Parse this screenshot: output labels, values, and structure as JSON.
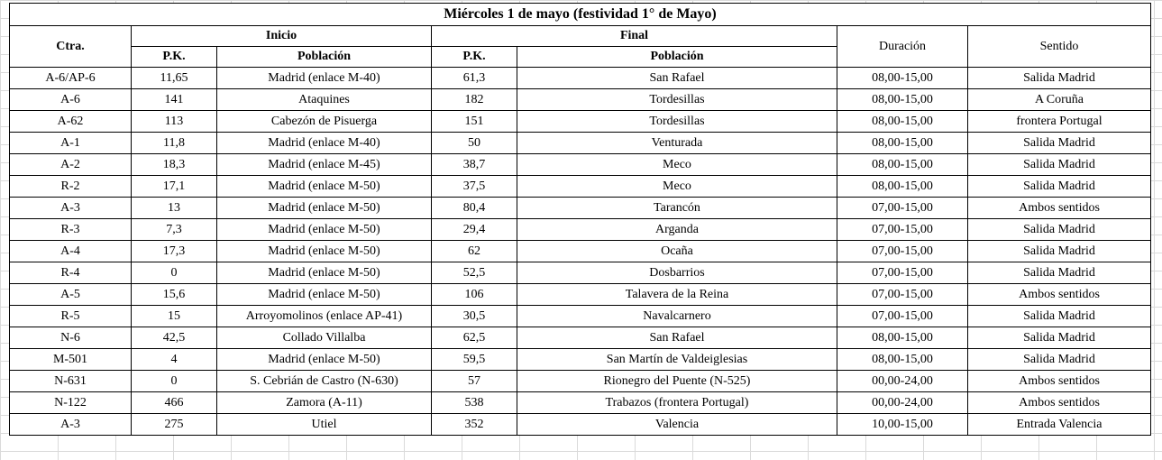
{
  "title": "Miércoles 1 de mayo  (festividad 1° de Mayo)",
  "headers": {
    "ctra": "Ctra.",
    "inicio": "Inicio",
    "final": "Final",
    "duracion": "Duración",
    "sentido": "Sentido",
    "pk_inicio": "P.K.",
    "poblacion_inicio": "Población",
    "pk_final": "P.K.",
    "poblacion_final": "Población"
  },
  "rows": [
    {
      "ctra": "A-6/AP-6",
      "pk_inicio": "11,65",
      "poblacion_inicio": "Madrid (enlace M-40)",
      "pk_final": "61,3",
      "poblacion_final": "San Rafael",
      "duracion": "08,00-15,00",
      "sentido": "Salida Madrid"
    },
    {
      "ctra": "A-6",
      "pk_inicio": "141",
      "poblacion_inicio": "Ataquines",
      "pk_final": "182",
      "poblacion_final": "Tordesillas",
      "duracion": "08,00-15,00",
      "sentido": "A Coruña"
    },
    {
      "ctra": "A-62",
      "pk_inicio": "113",
      "poblacion_inicio": "Cabezón de Pisuerga",
      "pk_final": "151",
      "poblacion_final": "Tordesillas",
      "duracion": "08,00-15,00",
      "sentido": "frontera Portugal"
    },
    {
      "ctra": "A-1",
      "pk_inicio": "11,8",
      "poblacion_inicio": "Madrid (enlace M-40)",
      "pk_final": "50",
      "poblacion_final": "Venturada",
      "duracion": "08,00-15,00",
      "sentido": "Salida Madrid"
    },
    {
      "ctra": "A-2",
      "pk_inicio": "18,3",
      "poblacion_inicio": "Madrid (enlace M-45)",
      "pk_final": "38,7",
      "poblacion_final": "Meco",
      "duracion": "08,00-15,00",
      "sentido": "Salida Madrid"
    },
    {
      "ctra": "R-2",
      "pk_inicio": "17,1",
      "poblacion_inicio": "Madrid (enlace M-50)",
      "pk_final": "37,5",
      "poblacion_final": "Meco",
      "duracion": "08,00-15,00",
      "sentido": "Salida Madrid"
    },
    {
      "ctra": "A-3",
      "pk_inicio": "13",
      "poblacion_inicio": "Madrid (enlace M-50)",
      "pk_final": "80,4",
      "poblacion_final": "Tarancón",
      "duracion": "07,00-15,00",
      "sentido": "Ambos sentidos"
    },
    {
      "ctra": "R-3",
      "pk_inicio": "7,3",
      "poblacion_inicio": "Madrid (enlace M-50)",
      "pk_final": "29,4",
      "poblacion_final": "Arganda",
      "duracion": "07,00-15,00",
      "sentido": "Salida Madrid"
    },
    {
      "ctra": "A-4",
      "pk_inicio": "17,3",
      "poblacion_inicio": "Madrid (enlace M-50)",
      "pk_final": "62",
      "poblacion_final": "Ocaña",
      "duracion": "07,00-15,00",
      "sentido": "Salida Madrid"
    },
    {
      "ctra": "R-4",
      "pk_inicio": "0",
      "poblacion_inicio": "Madrid (enlace M-50)",
      "pk_final": "52,5",
      "poblacion_final": "Dosbarrios",
      "duracion": "07,00-15,00",
      "sentido": "Salida Madrid"
    },
    {
      "ctra": "A-5",
      "pk_inicio": "15,6",
      "poblacion_inicio": "Madrid (enlace M-50)",
      "pk_final": "106",
      "poblacion_final": "Talavera de la Reina",
      "duracion": "07,00-15,00",
      "sentido": "Ambos sentidos"
    },
    {
      "ctra": "R-5",
      "pk_inicio": "15",
      "poblacion_inicio": "Arroyomolinos (enlace AP-41)",
      "pk_final": "30,5",
      "poblacion_final": "Navalcarnero",
      "duracion": "07,00-15,00",
      "sentido": "Salida Madrid"
    },
    {
      "ctra": "N-6",
      "pk_inicio": "42,5",
      "poblacion_inicio": "Collado Villalba",
      "pk_final": "62,5",
      "poblacion_final": "San Rafael",
      "duracion": "08,00-15,00",
      "sentido": "Salida Madrid"
    },
    {
      "ctra": "M-501",
      "pk_inicio": "4",
      "poblacion_inicio": "Madrid (enlace M-50)",
      "pk_final": "59,5",
      "poblacion_final": "San Martín de Valdeiglesias",
      "duracion": "08,00-15,00",
      "sentido": "Salida Madrid"
    },
    {
      "ctra": "N-631",
      "pk_inicio": "0",
      "poblacion_inicio": "S. Cebrián de Castro (N-630)",
      "pk_final": "57",
      "poblacion_final": "Rionegro del Puente  (N-525)",
      "duracion": "00,00-24,00",
      "sentido": "Ambos sentidos"
    },
    {
      "ctra": "N-122",
      "pk_inicio": "466",
      "poblacion_inicio": "Zamora (A-11)",
      "pk_final": "538",
      "poblacion_final": "Trabazos (frontera  Portugal)",
      "duracion": "00,00-24,00",
      "sentido": "Ambos sentidos"
    },
    {
      "ctra": "A-3",
      "pk_inicio": "275",
      "poblacion_inicio": "Utiel",
      "pk_final": "352",
      "poblacion_final": "Valencia",
      "duracion": "10,00-15,00",
      "sentido": "Entrada Valencia"
    }
  ]
}
